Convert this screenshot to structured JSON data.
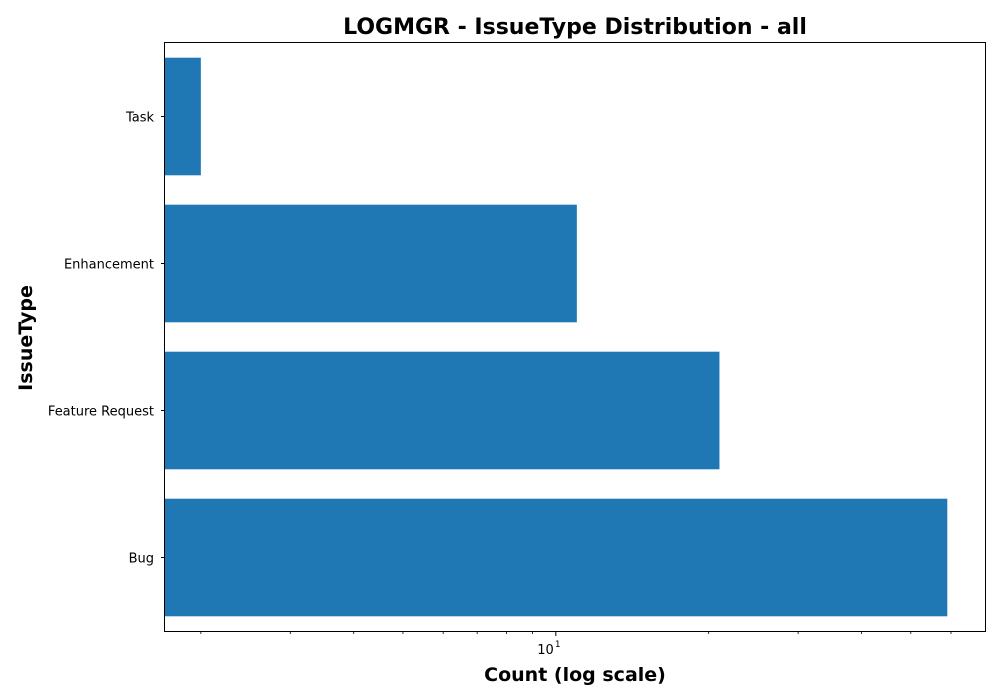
{
  "chart_data": {
    "type": "bar",
    "orientation": "horizontal",
    "title": "LOGMGR - IssueType Distribution - all",
    "xlabel": "Count (log scale)",
    "ylabel": "IssueType",
    "x_scale": "log",
    "xlim": [
      1.7,
      70
    ],
    "categories": [
      "Bug",
      "Feature Request",
      "Enhancement",
      "Task"
    ],
    "values": [
      59,
      21,
      11,
      2
    ],
    "bar_color": "#1f77b4",
    "grid": false,
    "x_major_ticks": [
      {
        "base": "10",
        "exp": "1",
        "value": 10
      }
    ],
    "x_minor_ticks": [
      2,
      3,
      4,
      5,
      6,
      7,
      8,
      9,
      20,
      30,
      40,
      50,
      60
    ]
  }
}
